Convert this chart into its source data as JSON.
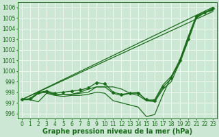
{
  "xlabel": "Graphe pression niveau de la mer (hPa)",
  "xlim": [
    -0.5,
    23.5
  ],
  "ylim": [
    995.5,
    1006.5
  ],
  "yticks": [
    996,
    997,
    998,
    999,
    1000,
    1001,
    1002,
    1003,
    1004,
    1005,
    1006
  ],
  "xticks": [
    0,
    1,
    2,
    3,
    4,
    5,
    6,
    7,
    8,
    9,
    10,
    11,
    12,
    13,
    14,
    15,
    16,
    17,
    18,
    19,
    20,
    21,
    22,
    23
  ],
  "bg_color": "#cce8d4",
  "line_color": "#1a6b1a",
  "straight_lines": [
    [
      [
        0,
        23
      ],
      [
        997.3,
        1006.0
      ]
    ],
    [
      [
        0,
        23
      ],
      [
        997.3,
        1005.6
      ]
    ]
  ],
  "series": [
    {
      "x": [
        0,
        1,
        2,
        3,
        4,
        5,
        6,
        7,
        8,
        9,
        10,
        11,
        12,
        13,
        14,
        15,
        16,
        17,
        18,
        19,
        20,
        21,
        22,
        23
      ],
      "y": [
        997.3,
        997.3,
        997.1,
        997.9,
        997.7,
        997.6,
        997.7,
        997.7,
        997.8,
        998.0,
        997.9,
        997.2,
        997.0,
        996.8,
        996.6,
        995.7,
        995.9,
        997.8,
        999.5,
        1000.7,
        1002.8,
        1005.0,
        1005.5,
        1005.7
      ],
      "marker": false
    },
    {
      "x": [
        0,
        1,
        2,
        3,
        4,
        5,
        6,
        7,
        8,
        9,
        10,
        11,
        12,
        13,
        14,
        15,
        16,
        17,
        18,
        19,
        20,
        21,
        22,
        23
      ],
      "y": [
        997.3,
        997.3,
        997.9,
        998.0,
        997.8,
        997.8,
        997.8,
        997.9,
        998.0,
        998.5,
        998.5,
        997.9,
        997.7,
        997.9,
        998.0,
        997.2,
        997.1,
        998.3,
        999.0,
        1000.8,
        1003.0,
        1005.0,
        1005.5,
        1005.8
      ],
      "marker": false
    },
    {
      "x": [
        0,
        1,
        2,
        3,
        4,
        5,
        6,
        7,
        8,
        9,
        10,
        11,
        12,
        13,
        14,
        15,
        16,
        17,
        18,
        19,
        20,
        21,
        22,
        23
      ],
      "y": [
        997.3,
        997.3,
        997.9,
        998.0,
        997.8,
        997.8,
        997.8,
        998.0,
        998.3,
        998.5,
        998.5,
        998.5,
        998.3,
        997.9,
        997.7,
        997.2,
        997.3,
        998.7,
        999.5,
        1001.0,
        1003.2,
        1005.2,
        1005.5,
        1005.8
      ],
      "marker": false
    },
    {
      "x": [
        0,
        1,
        2,
        3,
        4,
        5,
        6,
        7,
        8,
        9,
        10,
        11,
        12,
        13,
        14,
        15,
        16,
        17,
        18,
        19,
        20,
        21,
        22,
        23
      ],
      "y": [
        997.3,
        997.4,
        998.0,
        998.1,
        997.9,
        998.0,
        998.1,
        998.2,
        998.4,
        998.9,
        998.8,
        998.0,
        997.8,
        997.9,
        997.9,
        997.3,
        997.2,
        998.5,
        999.3,
        1001.0,
        1003.0,
        1005.1,
        1005.5,
        1005.9
      ],
      "marker": true
    }
  ],
  "marker_style": "D",
  "marker_size": 2.5,
  "linewidth": 0.9,
  "xlabel_fontsize": 7,
  "tick_fontsize": 5.5,
  "xlabel_color": "#1a6b1a",
  "grid_color": "#ffffff",
  "grid_linewidth": 0.5
}
